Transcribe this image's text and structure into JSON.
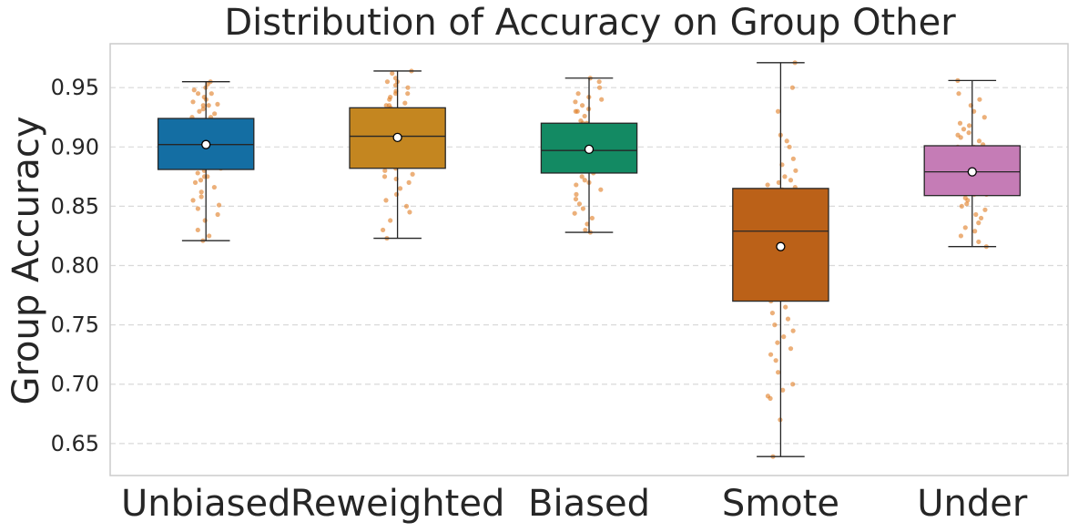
{
  "chart_data": {
    "type": "box",
    "title": "Distribution of Accuracy on Group Other",
    "xlabel": "",
    "ylabel": "Group Accuracy",
    "ylim": [
      0.623,
      0.987
    ],
    "yticks": [
      0.65,
      0.7,
      0.75,
      0.8,
      0.85,
      0.9,
      0.95
    ],
    "ytick_labels": [
      "0.65",
      "0.70",
      "0.75",
      "0.80",
      "0.85",
      "0.90",
      "0.95"
    ],
    "grid": true,
    "categories": [
      "Unbiased",
      "Reweighted",
      "Biased",
      "Smote",
      "Under"
    ],
    "box_colors": [
      "#146ea3",
      "#c48620",
      "#138a63",
      "#bb6118",
      "#c57cb6"
    ],
    "point_color": "#e07b22",
    "mean_marker_color": "#ffffff",
    "boxes": [
      {
        "name": "Unbiased",
        "whisker_low": 0.821,
        "q1": 0.881,
        "median": 0.902,
        "q3": 0.924,
        "whisker_high": 0.955,
        "mean": 0.902
      },
      {
        "name": "Reweighted",
        "whisker_low": 0.823,
        "q1": 0.882,
        "median": 0.909,
        "q3": 0.933,
        "whisker_high": 0.964,
        "mean": 0.908
      },
      {
        "name": "Biased",
        "whisker_low": 0.828,
        "q1": 0.878,
        "median": 0.897,
        "q3": 0.92,
        "whisker_high": 0.958,
        "mean": 0.898
      },
      {
        "name": "Smote",
        "whisker_low": 0.639,
        "q1": 0.77,
        "median": 0.829,
        "q3": 0.865,
        "whisker_high": 0.971,
        "mean": 0.816
      },
      {
        "name": "Under",
        "whisker_low": 0.816,
        "q1": 0.859,
        "median": 0.879,
        "q3": 0.901,
        "whisker_high": 0.956,
        "mean": 0.879
      }
    ],
    "points": [
      [
        0.95,
        0.953,
        0.948,
        0.945,
        0.942,
        0.94,
        0.938,
        0.936,
        0.935,
        0.932,
        0.93,
        0.928,
        0.925,
        0.922,
        0.92,
        0.918,
        0.915,
        0.912,
        0.91,
        0.908,
        0.906,
        0.905,
        0.903,
        0.902,
        0.9,
        0.898,
        0.896,
        0.895,
        0.893,
        0.89,
        0.888,
        0.886,
        0.884,
        0.882,
        0.88,
        0.878,
        0.875,
        0.872,
        0.87,
        0.866,
        0.862,
        0.858,
        0.855,
        0.851,
        0.848,
        0.843,
        0.838,
        0.83,
        0.825,
        0.821,
        0.91,
        0.905,
        0.895,
        0.885,
        0.875,
        0.915,
        0.925,
        0.935,
        0.945,
        0.955
      ],
      [
        0.964,
        0.962,
        0.958,
        0.955,
        0.952,
        0.95,
        0.947,
        0.945,
        0.942,
        0.94,
        0.937,
        0.935,
        0.933,
        0.93,
        0.928,
        0.925,
        0.922,
        0.92,
        0.918,
        0.915,
        0.912,
        0.91,
        0.908,
        0.906,
        0.905,
        0.903,
        0.9,
        0.898,
        0.895,
        0.893,
        0.89,
        0.888,
        0.885,
        0.882,
        0.88,
        0.877,
        0.873,
        0.87,
        0.865,
        0.86,
        0.855,
        0.85,
        0.845,
        0.838,
        0.83,
        0.823,
        0.915,
        0.905,
        0.895,
        0.925,
        0.935,
        0.945,
        0.955,
        0.885,
        0.875,
        0.91
      ],
      [
        0.958,
        0.955,
        0.95,
        0.945,
        0.942,
        0.938,
        0.935,
        0.932,
        0.93,
        0.926,
        0.922,
        0.92,
        0.917,
        0.914,
        0.91,
        0.907,
        0.904,
        0.902,
        0.9,
        0.898,
        0.896,
        0.894,
        0.892,
        0.89,
        0.888,
        0.886,
        0.884,
        0.882,
        0.88,
        0.878,
        0.875,
        0.872,
        0.868,
        0.864,
        0.86,
        0.856,
        0.852,
        0.848,
        0.844,
        0.84,
        0.835,
        0.83,
        0.828,
        0.9,
        0.91,
        0.92,
        0.93,
        0.89,
        0.88,
        0.87,
        0.94,
        0.895,
        0.905
      ],
      [
        0.971,
        0.95,
        0.93,
        0.91,
        0.905,
        0.9,
        0.89,
        0.885,
        0.88,
        0.875,
        0.872,
        0.87,
        0.868,
        0.866,
        0.864,
        0.862,
        0.86,
        0.857,
        0.855,
        0.852,
        0.85,
        0.848,
        0.845,
        0.842,
        0.84,
        0.835,
        0.83,
        0.828,
        0.825,
        0.82,
        0.815,
        0.81,
        0.805,
        0.8,
        0.795,
        0.79,
        0.785,
        0.78,
        0.775,
        0.77,
        0.765,
        0.76,
        0.755,
        0.75,
        0.745,
        0.74,
        0.735,
        0.73,
        0.725,
        0.72,
        0.71,
        0.7,
        0.695,
        0.69,
        0.688,
        0.67,
        0.639,
        0.86,
        0.85,
        0.84
      ],
      [
        0.956,
        0.945,
        0.94,
        0.935,
        0.93,
        0.925,
        0.92,
        0.918,
        0.915,
        0.912,
        0.91,
        0.908,
        0.905,
        0.902,
        0.9,
        0.898,
        0.896,
        0.894,
        0.892,
        0.89,
        0.888,
        0.886,
        0.884,
        0.882,
        0.88,
        0.878,
        0.876,
        0.874,
        0.872,
        0.87,
        0.868,
        0.866,
        0.864,
        0.862,
        0.86,
        0.857,
        0.855,
        0.852,
        0.85,
        0.847,
        0.843,
        0.84,
        0.836,
        0.832,
        0.829,
        0.825,
        0.82,
        0.816,
        0.89,
        0.88,
        0.87,
        0.9,
        0.86,
        0.885,
        0.875
      ]
    ]
  }
}
